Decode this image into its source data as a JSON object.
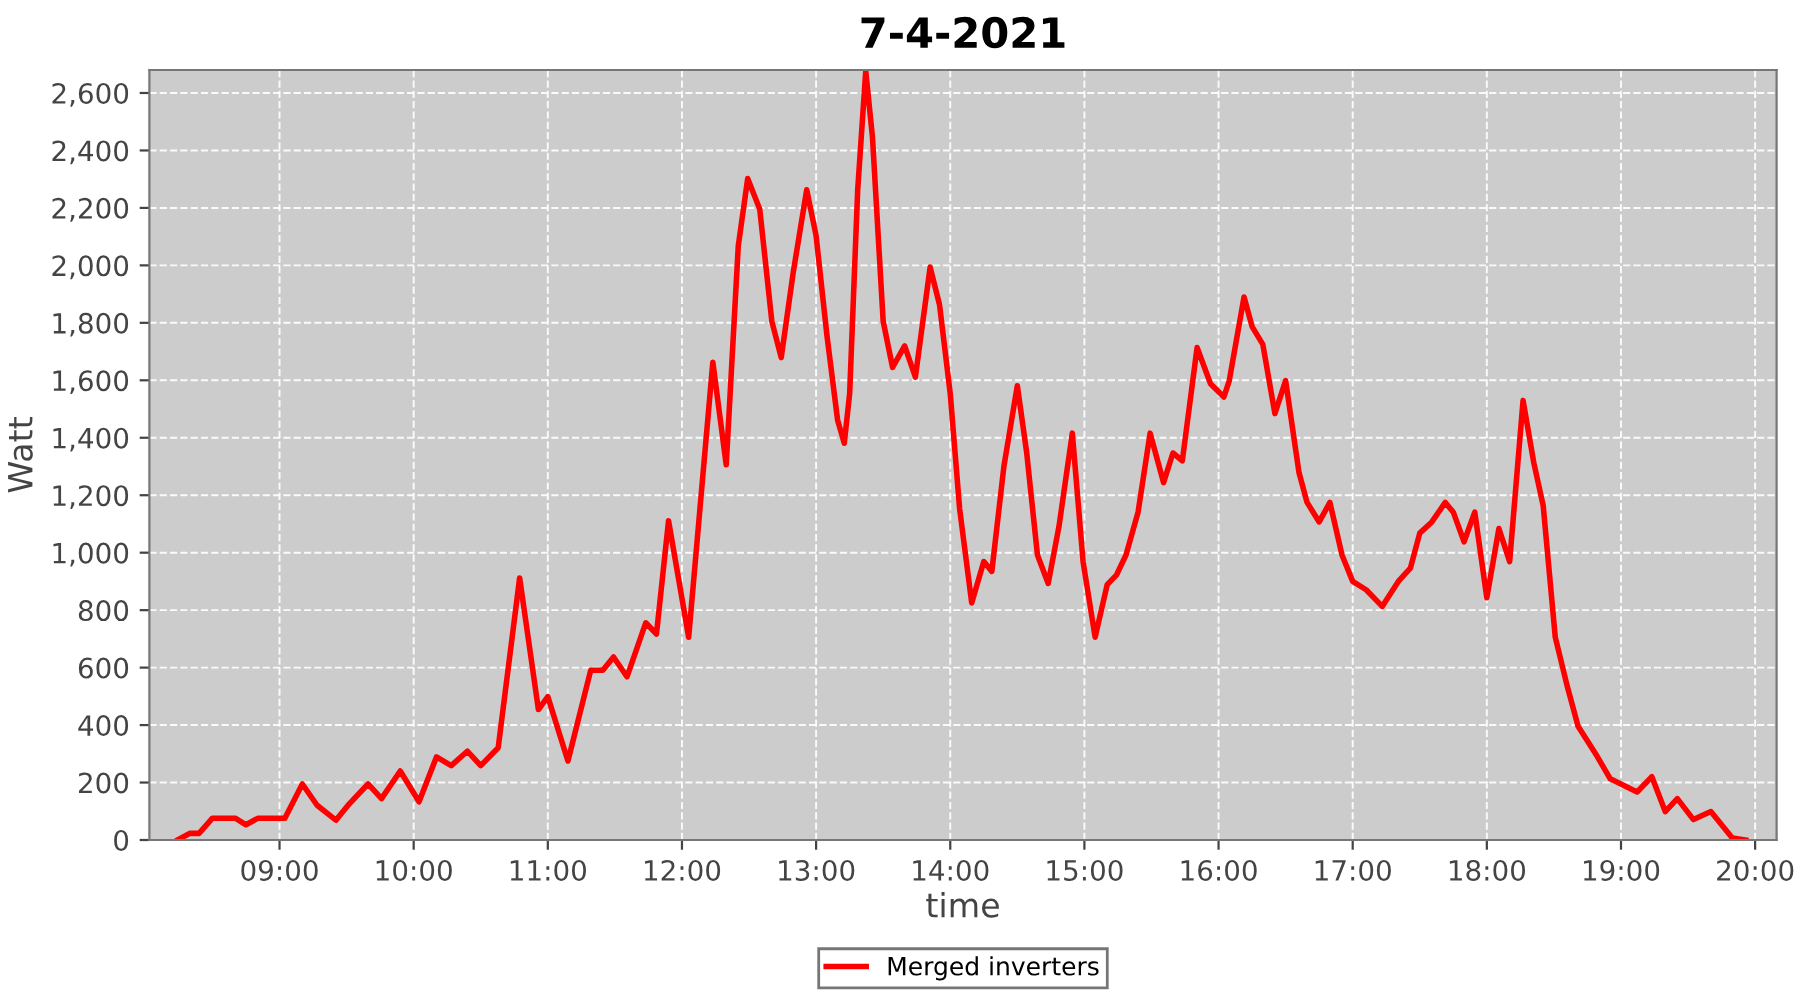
{
  "chart_data": {
    "type": "line",
    "title": "7-4-2021",
    "xlabel": "time",
    "ylabel": "Watt",
    "xlim": [
      8.03,
      20.16
    ],
    "ylim": [
      0,
      2680
    ],
    "xticks": [
      {
        "value": 9,
        "label": "09:00"
      },
      {
        "value": 10,
        "label": "10:00"
      },
      {
        "value": 11,
        "label": "11:00"
      },
      {
        "value": 12,
        "label": "12:00"
      },
      {
        "value": 13,
        "label": "13:00"
      },
      {
        "value": 14,
        "label": "14:00"
      },
      {
        "value": 15,
        "label": "15:00"
      },
      {
        "value": 16,
        "label": "16:00"
      },
      {
        "value": 17,
        "label": "17:00"
      },
      {
        "value": 18,
        "label": "18:00"
      },
      {
        "value": 19,
        "label": "19:00"
      },
      {
        "value": 20,
        "label": "20:00"
      }
    ],
    "yticks": [
      0,
      200,
      400,
      600,
      800,
      {
        "value": 1000,
        "label": "1,000"
      },
      {
        "value": 1200,
        "label": "1,200"
      },
      {
        "value": 1400,
        "label": "1,400"
      },
      {
        "value": 1600,
        "label": "1,600"
      },
      {
        "value": 1800,
        "label": "1,800"
      },
      {
        "value": 2000,
        "label": "2,000"
      },
      {
        "value": 2200,
        "label": "2,200"
      },
      {
        "value": 2400,
        "label": "2,400"
      },
      {
        "value": 2600,
        "label": "2,600"
      }
    ],
    "grid": true,
    "legend": "bottom",
    "marker": "none",
    "line_style": "solid",
    "series": [
      {
        "name": "Merged inverters",
        "color": "#ff0000",
        "x": [
          8.24,
          8.33,
          8.4,
          8.5,
          8.67,
          8.75,
          8.84,
          9.04,
          9.17,
          9.28,
          9.42,
          9.52,
          9.66,
          9.76,
          9.9,
          10.04,
          10.17,
          10.28,
          10.4,
          10.5,
          10.63,
          10.79,
          10.93,
          11.0,
          11.15,
          11.32,
          11.41,
          11.49,
          11.59,
          11.73,
          11.81,
          11.9,
          12.05,
          12.23,
          12.33,
          12.42,
          12.49,
          12.58,
          12.67,
          12.74,
          12.83,
          12.93,
          13.0,
          13.08,
          13.16,
          13.21,
          13.25,
          13.31,
          13.37,
          13.42,
          13.5,
          13.57,
          13.66,
          13.74,
          13.85,
          13.92,
          14.0,
          14.07,
          14.16,
          14.25,
          14.31,
          14.4,
          14.5,
          14.57,
          14.65,
          14.73,
          14.81,
          14.91,
          14.99,
          15.08,
          15.17,
          15.24,
          15.31,
          15.4,
          15.49,
          15.59,
          15.66,
          15.73,
          15.84,
          15.94,
          16.04,
          16.08,
          16.19,
          16.25,
          16.33,
          16.42,
          16.5,
          16.6,
          16.66,
          16.75,
          16.83,
          16.92,
          17.0,
          17.1,
          17.22,
          17.34,
          17.43,
          17.5,
          17.59,
          17.69,
          17.75,
          17.83,
          17.91,
          18.0,
          18.09,
          18.17,
          18.27,
          18.35,
          18.42,
          18.51,
          18.6,
          18.68,
          18.82,
          18.92,
          19.12,
          19.23,
          19.33,
          19.42,
          19.54,
          19.67,
          19.83,
          19.93
        ],
        "values": [
          0,
          23,
          23,
          76,
          76,
          53,
          76,
          76,
          195,
          121,
          69,
          126,
          195,
          144,
          240,
          133,
          289,
          259,
          309,
          259,
          321,
          912,
          454,
          499,
          275,
          591,
          591,
          637,
          568,
          756,
          717,
          1111,
          706,
          1663,
          1306,
          2069,
          2302,
          2195,
          1805,
          1679,
          1977,
          2263,
          2103,
          1759,
          1462,
          1381,
          1553,
          2263,
          2676,
          2447,
          1805,
          1645,
          1720,
          1611,
          1994,
          1863,
          1553,
          1152,
          825,
          969,
          935,
          1301,
          1581,
          1347,
          992,
          893,
          1090,
          1416,
          969,
          706,
          889,
          923,
          992,
          1141,
          1416,
          1244,
          1347,
          1320,
          1714,
          1588,
          1542,
          1599,
          1890,
          1787,
          1725,
          1484,
          1599,
          1278,
          1175,
          1107,
          1175,
          992,
          900,
          871,
          813,
          900,
          946,
          1068,
          1107,
          1175,
          1141,
          1038,
          1141,
          843,
          1084,
          969,
          1530,
          1313,
          1164,
          706,
          534,
          396,
          293,
          213,
          167,
          220,
          99,
          144,
          71,
          99,
          7,
          0
        ]
      }
    ]
  }
}
